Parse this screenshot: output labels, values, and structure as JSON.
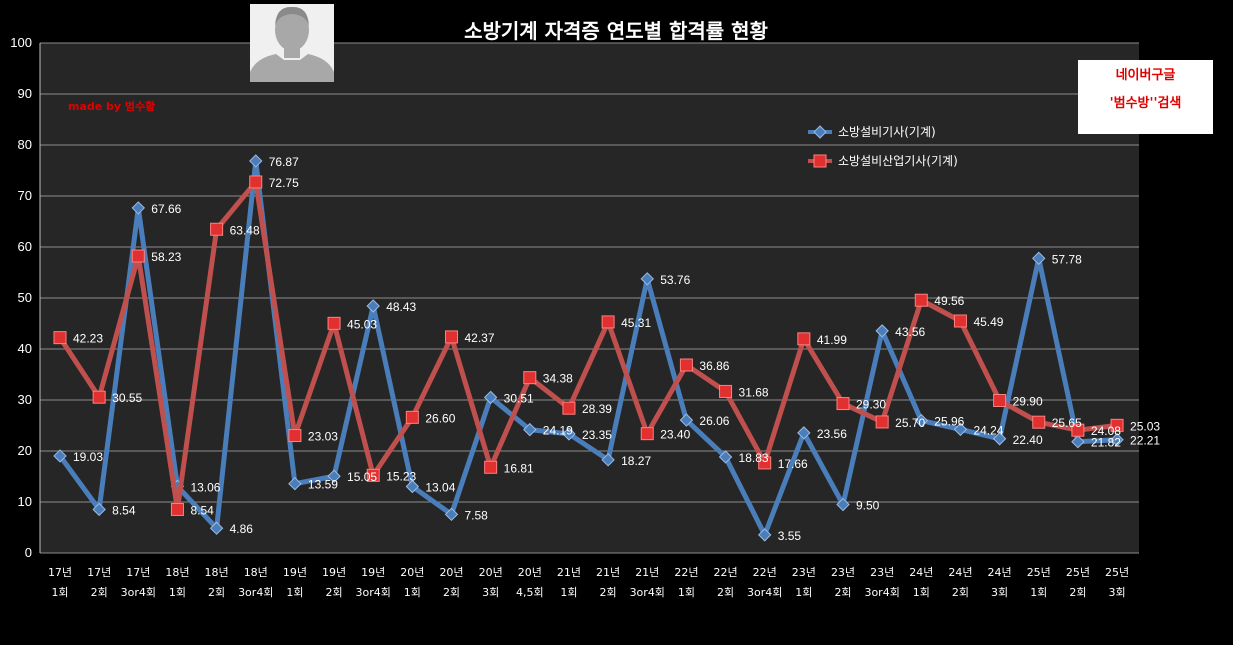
{
  "page": {
    "made_by": "made by  범수황",
    "search_line1": "네이버구글",
    "search_line2": "'범수방''검색"
  },
  "colors": {
    "series1": "#4a7ebb",
    "series2": "#c0504d",
    "plot_bg": "#262626",
    "grid": "#8c8c8c"
  },
  "chart_data": {
    "type": "line",
    "title": "소방기계 자격증 연도별 합격률 현황",
    "xlabel": "",
    "ylabel": "",
    "ylim": [
      0,
      100
    ],
    "yticks": [
      0,
      10,
      20,
      30,
      40,
      50,
      60,
      70,
      80,
      90,
      100
    ],
    "grid": true,
    "legend_position": "top-right",
    "categories": [
      [
        "17년",
        "1회"
      ],
      [
        "17년",
        "2회"
      ],
      [
        "17년",
        "3or4회"
      ],
      [
        "18년",
        "1회"
      ],
      [
        "18년",
        "2회"
      ],
      [
        "18년",
        "3or4회"
      ],
      [
        "19년",
        "1회"
      ],
      [
        "19년",
        "2회"
      ],
      [
        "19년",
        "3or4회"
      ],
      [
        "20년",
        "1회"
      ],
      [
        "20년",
        "2회"
      ],
      [
        "20년",
        "3회"
      ],
      [
        "20년",
        "4,5회"
      ],
      [
        "21년",
        "1회"
      ],
      [
        "21년",
        "2회"
      ],
      [
        "21년",
        "3or4회"
      ],
      [
        "22년",
        "1회"
      ],
      [
        "22년",
        "2회"
      ],
      [
        "22년",
        "3or4회"
      ],
      [
        "23년",
        "1회"
      ],
      [
        "23년",
        "2회"
      ],
      [
        "23년",
        "3or4회"
      ],
      [
        "24년",
        "1회"
      ],
      [
        "24년",
        "2회"
      ],
      [
        "24년",
        "3회"
      ],
      [
        "25년",
        "1회"
      ],
      [
        "25년",
        "2회"
      ],
      [
        "25년",
        "3회"
      ]
    ],
    "series": [
      {
        "name": "소방설비기사(기계)",
        "marker": "diamond",
        "values": [
          19.03,
          8.54,
          67.66,
          13.06,
          4.86,
          76.87,
          13.59,
          15.05,
          48.43,
          13.04,
          7.58,
          30.51,
          24.19,
          23.35,
          18.27,
          53.76,
          26.06,
          18.83,
          3.55,
          23.56,
          9.5,
          43.56,
          25.96,
          24.24,
          22.4,
          57.78,
          21.82,
          22.21
        ],
        "labels": [
          "19.03",
          "8.54",
          "67.66",
          "13.06",
          "4.86",
          "76.87",
          "13.59",
          "15.05",
          "48.43",
          "13.04",
          "7.58",
          "30.51",
          "24.19",
          "23.35",
          "18.27",
          "53.76",
          "26.06",
          "18.83",
          "3.55",
          "23.56",
          "9.50",
          "43.56",
          "25.96",
          "24.24",
          "22.40",
          "57.78",
          "21.82",
          "22.21"
        ]
      },
      {
        "name": "소방설비산업기사(기계)",
        "marker": "square",
        "values": [
          42.23,
          30.55,
          58.23,
          8.54,
          63.48,
          72.75,
          23.03,
          45.03,
          15.23,
          26.6,
          42.37,
          16.81,
          34.38,
          28.39,
          45.31,
          23.4,
          36.86,
          31.68,
          17.66,
          41.99,
          29.3,
          25.7,
          49.56,
          45.49,
          29.9,
          25.65,
          24.08,
          25.03
        ],
        "labels": [
          "42.23",
          "30.55",
          "58.23",
          "8.54",
          "63.48",
          "72.75",
          "23.03",
          "45.03",
          "15.23",
          "26.60",
          "42.37",
          "16.81",
          "34.38",
          "28.39",
          "45.31",
          "23.40",
          "36.86",
          "31.68",
          "17.66",
          "41.99",
          "29.30",
          "25.70",
          "49.56",
          "45.49",
          "29.90",
          "25.65",
          "24.08",
          "25.03"
        ]
      }
    ]
  }
}
